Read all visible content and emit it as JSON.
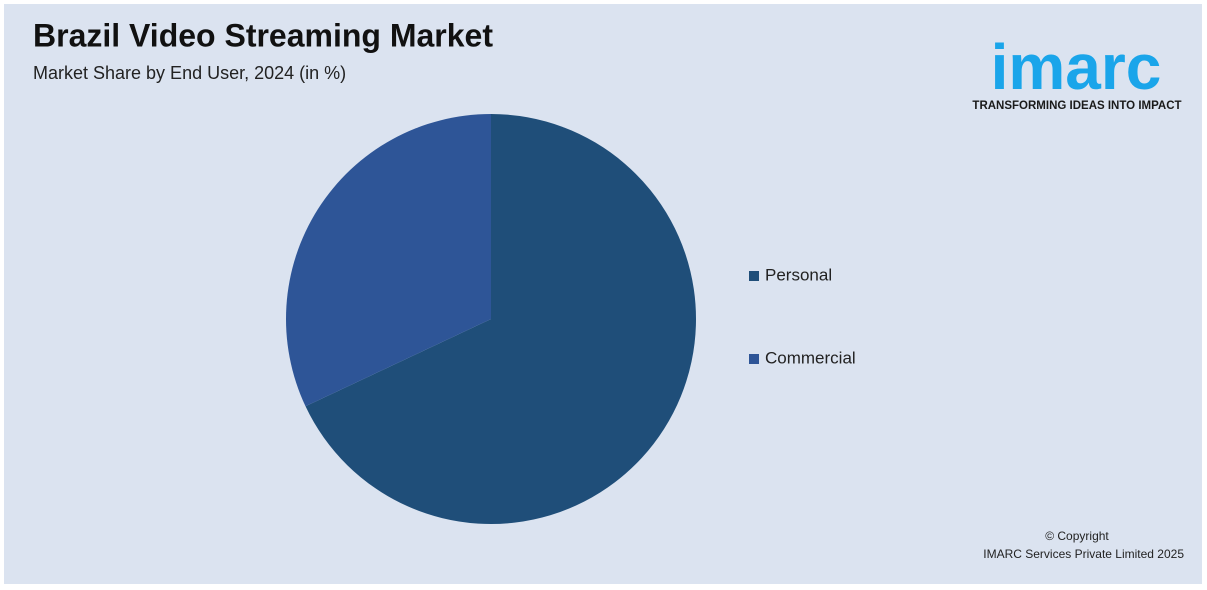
{
  "chart_data": {
    "type": "pie",
    "title": "Brazil Video Streaming Market",
    "subtitle": "Market Share by End User, 2024 (in %)",
    "categories": [
      "Personal",
      "Commercial"
    ],
    "values": [
      68,
      32
    ],
    "colors": [
      "#1f4e79",
      "#2e5597"
    ]
  },
  "logo": {
    "name": "imarc",
    "tagline": "TRANSFORMING IDEAS INTO IMPACT"
  },
  "footer": {
    "copyright": "© Copyright",
    "company": "IMARC Services Private Limited 2025"
  }
}
